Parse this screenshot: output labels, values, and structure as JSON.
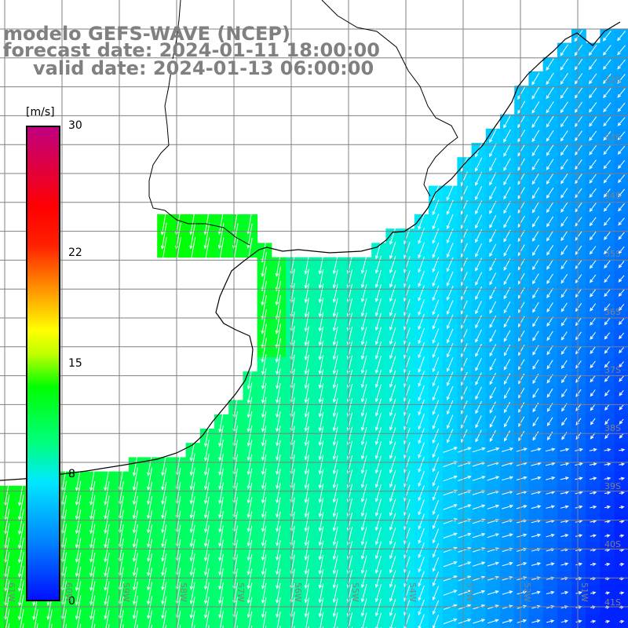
{
  "title": {
    "line1": "modelo GEFS-WAVE (NCEP)",
    "line2": "forecast date: 2024-01-11 18:00:00",
    "line3": "valid date: 2024-01-13 06:00:00"
  },
  "colorbar": {
    "unit": "[m/s]",
    "ticks": [
      {
        "label": "30",
        "value": 30
      },
      {
        "label": "22",
        "value": 22
      },
      {
        "label": "15",
        "value": 15
      },
      {
        "label": "8",
        "value": 8
      },
      {
        "label": "0",
        "value": 0
      }
    ],
    "min": 0,
    "max": 30
  },
  "map": {
    "lat_labels": [
      "32S",
      "33S",
      "34S",
      "35S",
      "36S",
      "37S",
      "38S",
      "39S",
      "40S",
      "41S"
    ],
    "lon_labels": [
      "61W",
      "60W",
      "59W",
      "58W",
      "57W",
      "56W",
      "55W",
      "54W",
      "53W",
      "52W",
      "51W",
      "50W"
    ],
    "colors": {
      "land": "#ffffff",
      "coast": "#000000",
      "grid": "#808080",
      "arrows": "#ffffff",
      "title": "#808080"
    }
  }
}
